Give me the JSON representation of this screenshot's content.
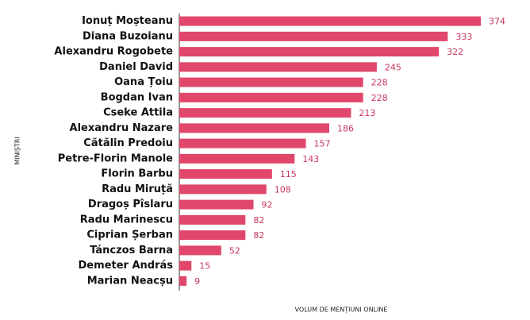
{
  "chart_data": {
    "type": "bar",
    "orientation": "horizontal",
    "x_label": "VOLUM DE MENȚIUNI ONLINE",
    "y_label": "MINIȘTRI",
    "categories": [
      "Ionuț Moșteanu",
      "Diana Buzoianu",
      "Alexandru Rogobete",
      "Daniel David",
      "Oana Țoiu",
      "Bogdan Ivan",
      "Cseke Attila",
      "Alexandru Nazare",
      "Cătălin Predoiu",
      "Petre-Florin Manole",
      "Florin Barbu",
      "Radu Miruță",
      "Dragoș Pîslaru",
      "Radu Marinescu",
      "Ciprian Șerban",
      "Tánczos Barna",
      "Demeter András",
      "Marian Neacșu"
    ],
    "values": [
      374,
      333,
      322,
      245,
      228,
      228,
      213,
      186,
      157,
      143,
      115,
      108,
      92,
      82,
      82,
      52,
      15,
      9
    ],
    "color": "#e0476b",
    "xlim": [
      0,
      374
    ]
  }
}
